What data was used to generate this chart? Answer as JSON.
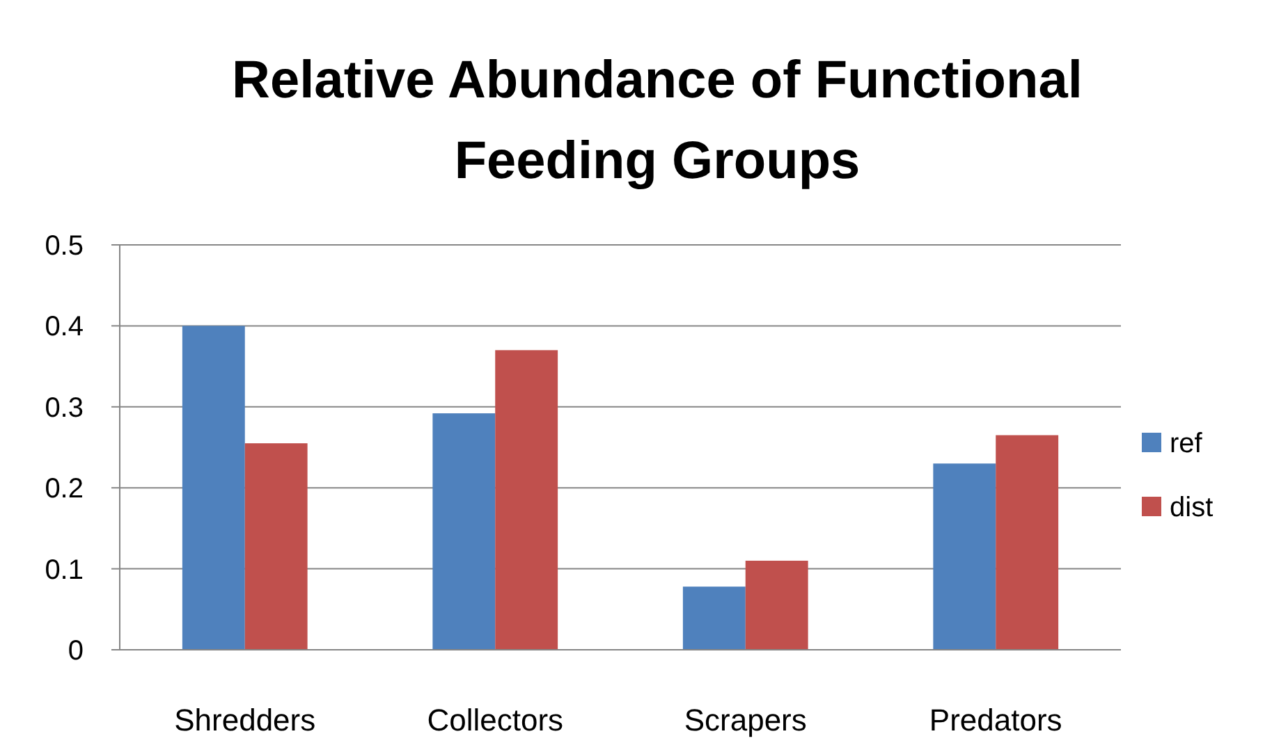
{
  "chart_data": {
    "type": "bar",
    "title": "Relative Abundance of Functional Feeding Groups",
    "categories": [
      "Shredders",
      "Collectors",
      "Scrapers",
      "Predators"
    ],
    "series": [
      {
        "name": "ref",
        "color": "#4f81bd",
        "values": [
          0.4,
          0.292,
          0.078,
          0.23
        ]
      },
      {
        "name": "dist",
        "color": "#c0504d",
        "values": [
          0.255,
          0.37,
          0.11,
          0.265
        ]
      }
    ],
    "ylim": [
      0,
      0.5
    ],
    "yticks": [
      0,
      0.1,
      0.2,
      0.3,
      0.4,
      0.5
    ],
    "grid": "y",
    "legend": "right"
  }
}
